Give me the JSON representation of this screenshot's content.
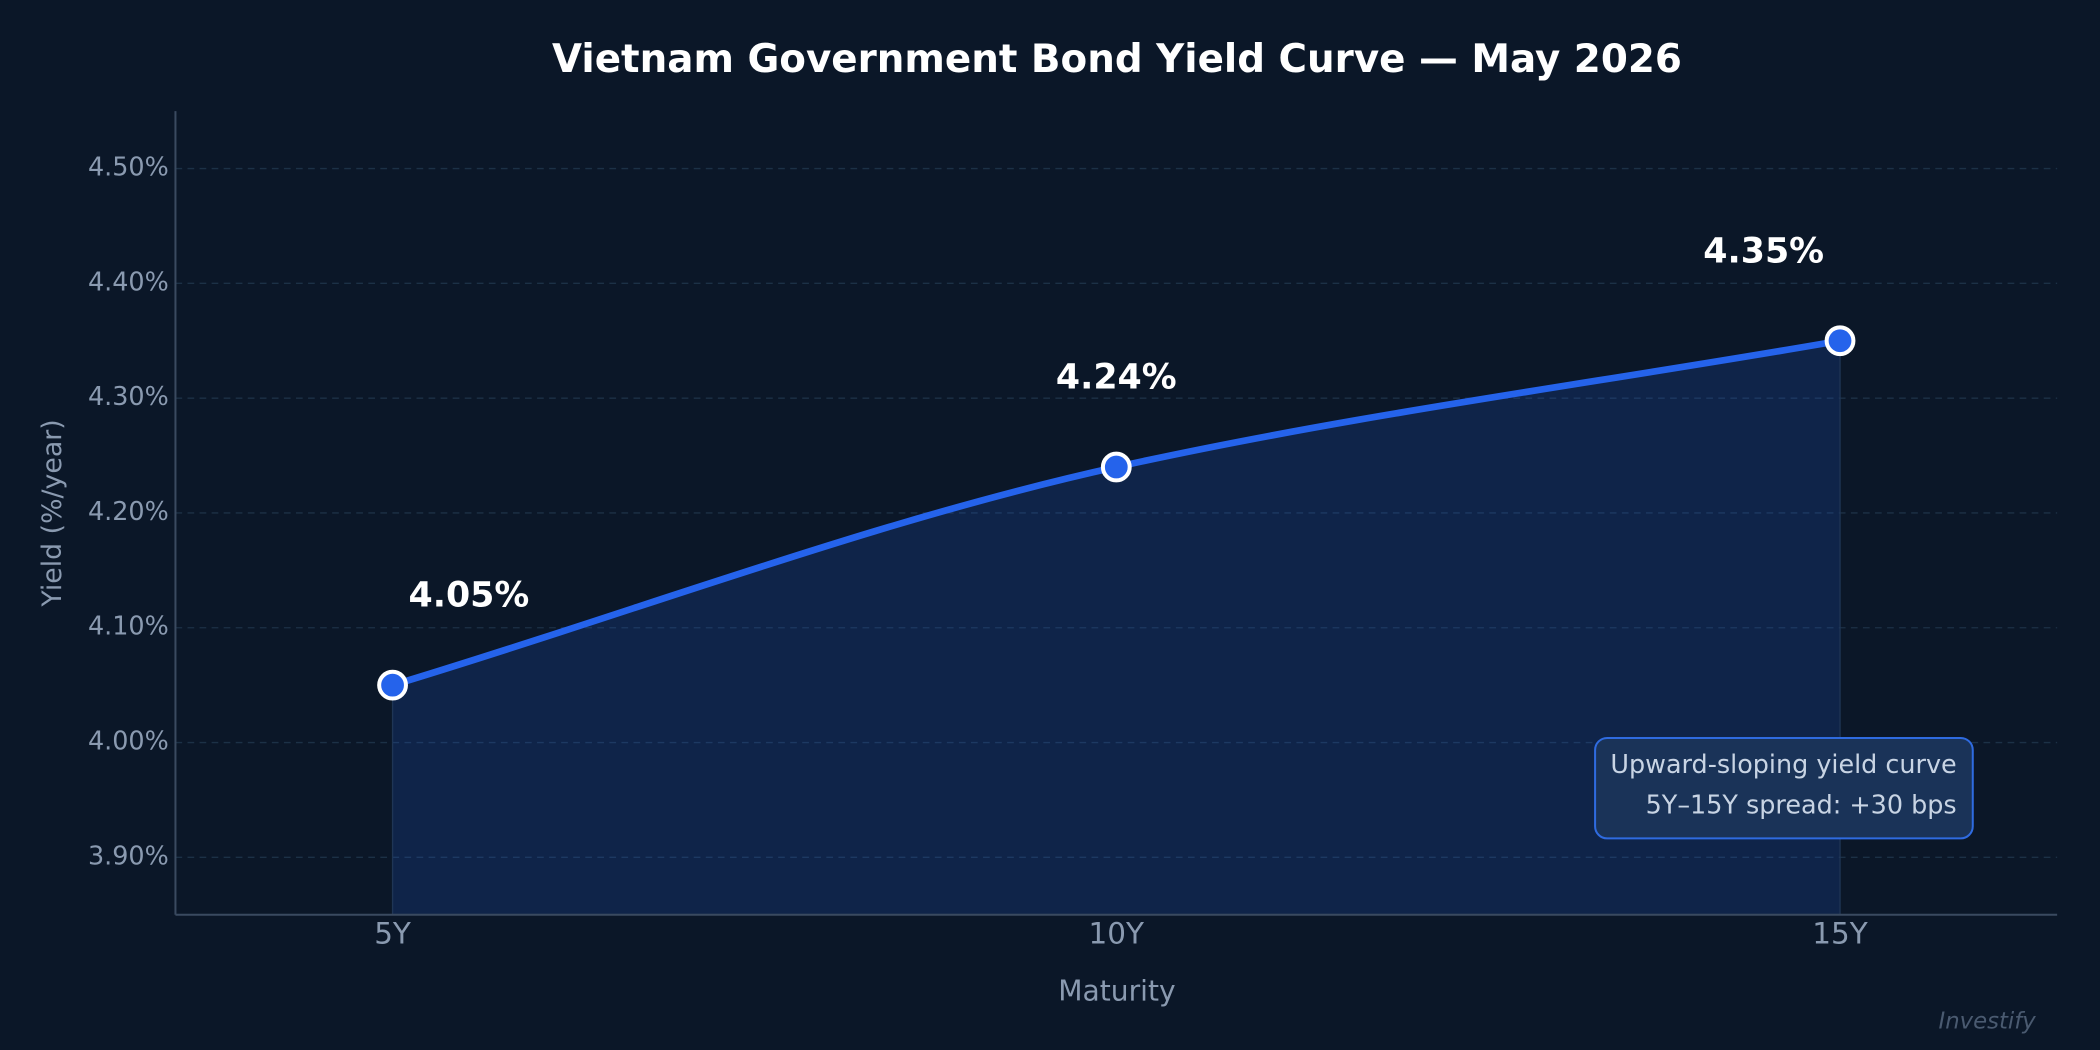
{
  "chart_data": {
    "type": "line",
    "title": "Vietnam Government Bond Yield Curve — May 2026",
    "x_label": "Maturity",
    "y_label": "Yield (%/year)",
    "categories": [
      "5Y",
      "10Y",
      "15Y"
    ],
    "series": [
      {
        "name": "Yield",
        "color": "#2563eb",
        "values": [
          4.05,
          4.24,
          4.35
        ],
        "value_labels": [
          "4.05%",
          "4.24%",
          "4.35%"
        ]
      }
    ],
    "ylim": [
      3.85,
      4.55
    ],
    "yticks": [
      {
        "value": 3.9,
        "label": "3.90%"
      },
      {
        "value": 4.0,
        "label": "4.00%"
      },
      {
        "value": 4.1,
        "label": "4.10%"
      },
      {
        "value": 4.2,
        "label": "4.20%"
      },
      {
        "value": 4.3,
        "label": "4.30%"
      },
      {
        "value": 4.4,
        "label": "4.40%"
      },
      {
        "value": 4.5,
        "label": "4.50%"
      }
    ],
    "grid": true,
    "area": true,
    "annotation": [
      "Upward-sloping yield curve",
      "5Y–15Y spread: +30 bps"
    ],
    "watermark": "Investify"
  }
}
